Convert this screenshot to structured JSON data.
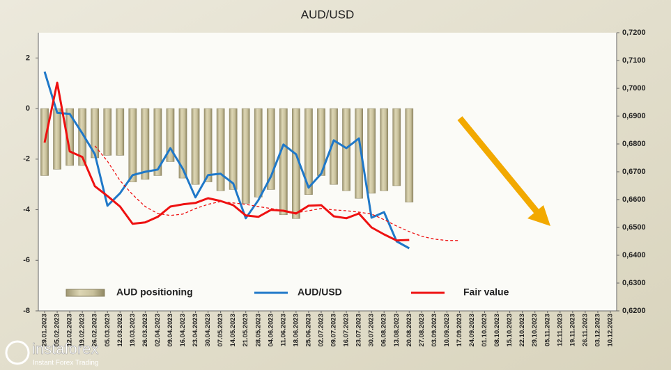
{
  "chart_data": {
    "type": "bar",
    "title": "AUD/USD",
    "categories": [
      "29.01.2023",
      "05.02.2023",
      "12.02.2023",
      "19.02.2023",
      "26.02.2023",
      "05.03.2023",
      "12.03.2023",
      "19.03.2023",
      "26.03.2023",
      "02.04.2023",
      "09.04.2023",
      "16.04.2023",
      "23.04.2023",
      "30.04.2023",
      "07.05.2023",
      "14.05.2023",
      "21.05.2023",
      "28.05.2023",
      "04.06.2023",
      "11.06.2023",
      "18.06.2023",
      "25.06.2023",
      "02.07.2023",
      "09.07.2023",
      "16.07.2023",
      "23.07.2023",
      "30.07.2023",
      "06.08.2023",
      "13.08.2023",
      "20.08.2023",
      "27.08.2023",
      "03.09.2023",
      "10.09.2023",
      "17.09.2023",
      "24.09.2023",
      "01.10.2023",
      "08.10.2023",
      "15.10.2023",
      "22.10.2023",
      "29.10.2023",
      "05.11.2023",
      "12.11.2023",
      "19.11.2023",
      "26.11.2023",
      "03.12.2023",
      "10.12.2023"
    ],
    "series": [
      {
        "name": "AUD positioning",
        "type": "bar",
        "axis": "y",
        "color": "#c9c19c",
        "values": [
          -2.65,
          -2.4,
          -2.25,
          -2.25,
          -1.95,
          -1.85,
          -1.85,
          -2.9,
          -2.8,
          -2.65,
          -2.1,
          -2.75,
          -3.0,
          -2.9,
          -3.25,
          -3.2,
          -3.75,
          -3.5,
          -3.2,
          -4.2,
          -4.35,
          -3.4,
          -2.65,
          -3.0,
          -3.25,
          -3.55,
          -3.35,
          -3.25,
          -3.05,
          -3.7,
          null,
          null,
          null,
          null,
          null,
          null,
          null,
          null,
          null,
          null,
          null,
          null,
          null,
          null,
          null,
          null
        ]
      },
      {
        "name": "AUD/USD",
        "type": "line",
        "axis": "y2",
        "color": "#1f78c8",
        "values": [
          0.706,
          0.6912,
          0.6908,
          0.6838,
          0.6763,
          0.6578,
          0.6623,
          0.6688,
          0.67,
          0.6708,
          0.6785,
          0.671,
          0.6608,
          0.6688,
          0.6693,
          0.6658,
          0.6533,
          0.6598,
          0.6683,
          0.6798,
          0.6763,
          0.6643,
          0.6693,
          0.6813,
          0.6785,
          0.682,
          0.6535,
          0.6555,
          0.645,
          0.6425,
          null,
          null,
          null,
          null,
          null,
          null,
          null,
          null,
          null,
          null,
          null,
          null,
          null,
          null,
          null,
          null
        ]
      },
      {
        "name": "Fair value",
        "type": "line",
        "axis": "y2",
        "color": "#ee1111",
        "values": [
          0.6805,
          0.702,
          0.6773,
          0.6753,
          0.6648,
          0.6613,
          0.6575,
          0.6513,
          0.6518,
          0.6538,
          0.6575,
          0.6583,
          0.6588,
          0.6605,
          0.6595,
          0.658,
          0.6543,
          0.6538,
          0.6563,
          0.656,
          0.655,
          0.6578,
          0.658,
          0.654,
          0.6533,
          0.655,
          0.65,
          0.6475,
          0.6453,
          0.6455,
          null,
          null,
          null,
          null,
          null,
          null,
          null,
          null,
          null,
          null,
          null,
          null,
          null,
          null,
          null,
          null
        ]
      },
      {
        "type": "line",
        "axis": "y2",
        "color": "#ee1111",
        "dashed": true,
        "values": [
          null,
          null,
          null,
          null,
          0.6793,
          0.6738,
          0.6668,
          0.6618,
          0.6575,
          0.655,
          0.6543,
          0.6548,
          0.6568,
          0.6583,
          0.6593,
          0.6588,
          0.6583,
          0.6575,
          0.6568,
          0.656,
          0.6553,
          0.656,
          0.6568,
          0.6563,
          0.656,
          0.6555,
          0.6548,
          0.6528,
          0.6505,
          0.6485,
          0.6468,
          0.6458,
          0.6453,
          0.6453,
          null,
          null,
          null,
          null,
          null,
          null,
          null,
          null,
          null,
          null,
          null,
          null
        ]
      }
    ],
    "ylim": [
      -8,
      3
    ],
    "yticks": [
      -8,
      -6,
      -4,
      -2,
      0,
      2
    ],
    "y2lim": [
      0.62,
      0.72
    ],
    "y2ticks": [
      {
        "value": 0.62,
        "label": "0,6200"
      },
      {
        "value": 0.63,
        "label": "0,6300"
      },
      {
        "value": 0.64,
        "label": "0,6400"
      },
      {
        "value": 0.65,
        "label": "0,6500"
      },
      {
        "value": 0.66,
        "label": "0,6600"
      },
      {
        "value": 0.67,
        "label": "0,6700"
      },
      {
        "value": 0.68,
        "label": "0,6800"
      },
      {
        "value": 0.69,
        "label": "0,6900"
      },
      {
        "value": 0.7,
        "label": "0,7000"
      },
      {
        "value": 0.71,
        "label": "0,7100"
      },
      {
        "value": 0.72,
        "label": "0,7200"
      }
    ],
    "grid": false,
    "legend": "bottom"
  },
  "watermark": {
    "brand": "instaforex",
    "tagline": "Instant Forex Trading"
  }
}
